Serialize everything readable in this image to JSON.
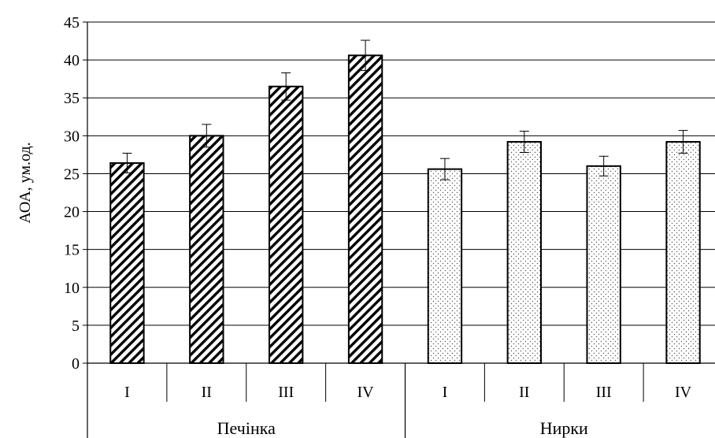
{
  "chart_data": {
    "type": "bar",
    "ylabel": "АОА, ум.од.",
    "ylim": [
      0,
      45
    ],
    "yticks": [
      0,
      5,
      10,
      15,
      20,
      25,
      30,
      35,
      40,
      45
    ],
    "grid": true,
    "groups": [
      {
        "name": "Печінка",
        "pattern": "diagonal-hatch",
        "categories": [
          "I",
          "II",
          "III",
          "IV"
        ],
        "values": [
          26.4,
          30.0,
          36.5,
          40.6
        ],
        "errors": [
          1.3,
          1.5,
          1.8,
          2.0
        ]
      },
      {
        "name": "Нирки",
        "pattern": "dotted",
        "categories": [
          "I",
          "II",
          "III",
          "IV"
        ],
        "values": [
          25.6,
          29.2,
          26.0,
          29.2
        ],
        "errors": [
          1.4,
          1.4,
          1.3,
          1.5
        ]
      }
    ]
  }
}
